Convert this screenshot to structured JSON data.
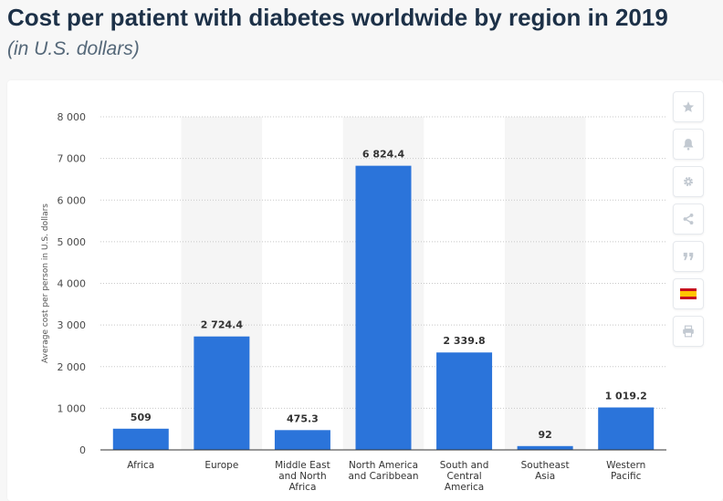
{
  "page": {
    "title": "Cost per patient with diabetes worldwide by region in 2019",
    "subtitle": "(in U.S. dollars)"
  },
  "toolbar": {
    "items": [
      {
        "name": "favorite",
        "icon": "star-icon"
      },
      {
        "name": "notification",
        "icon": "bell-icon"
      },
      {
        "name": "settings",
        "icon": "gear-icon"
      },
      {
        "name": "share",
        "icon": "share-icon"
      },
      {
        "name": "cite",
        "icon": "quote-icon"
      },
      {
        "name": "language",
        "icon": "spain-flag-icon"
      },
      {
        "name": "print",
        "icon": "printer-icon"
      }
    ]
  },
  "colors": {
    "bar": "#2b74da",
    "band": "#f5f5f5",
    "grid": "#c8c8c8",
    "axis": "#333333",
    "icon": "#c2c9d1",
    "flag_red": "#c60b1e",
    "flag_yellow": "#ffc400"
  },
  "chart_data": {
    "type": "bar",
    "title": "Cost per patient with diabetes worldwide by region in 2019",
    "subtitle": "(in U.S. dollars)",
    "xlabel": "",
    "ylabel": "Average cost per person in U.S. dollars",
    "ylim": [
      0,
      8000
    ],
    "yticks": [
      0,
      1000,
      2000,
      3000,
      4000,
      5000,
      6000,
      7000,
      8000
    ],
    "ytick_labels": [
      "0",
      "1 000",
      "2 000",
      "3 000",
      "4 000",
      "5 000",
      "6 000",
      "7 000",
      "8 000"
    ],
    "grid": true,
    "categories": [
      [
        "Africa"
      ],
      [
        "Europe"
      ],
      [
        "Middle East",
        "and North",
        "Africa"
      ],
      [
        "North America",
        "and Caribbean"
      ],
      [
        "South and",
        "Central",
        "America"
      ],
      [
        "Southeast",
        "Asia"
      ],
      [
        "Western",
        "Pacific"
      ]
    ],
    "values": [
      509,
      2724.4,
      475.3,
      6824.4,
      2339.8,
      92,
      1019.2
    ],
    "value_labels": [
      "509",
      "2 724.4",
      "475.3",
      "6 824.4",
      "2 339.8",
      "92",
      "1 019.2"
    ]
  }
}
